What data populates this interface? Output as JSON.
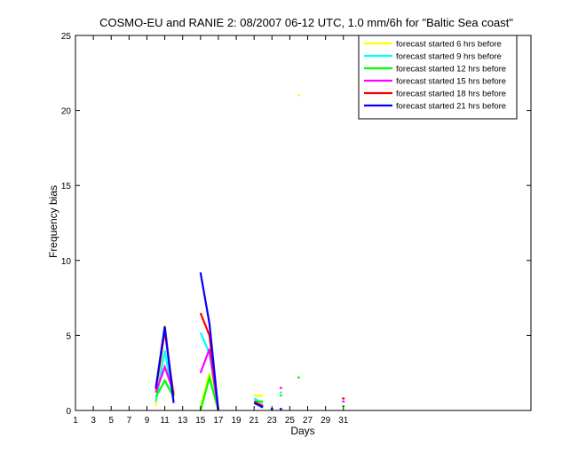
{
  "chart_data": {
    "type": "line",
    "title": "COSMO-EU and RANIE 2: 08/2007 06-12 UTC, 1.0 mm/6h for \"Baltic Sea coast\"",
    "xlabel": "Days",
    "ylabel": "Frequency bias",
    "xlim": [
      1,
      52
    ],
    "ylim": [
      0,
      25
    ],
    "xticks": [
      1,
      3,
      5,
      7,
      9,
      11,
      13,
      15,
      17,
      19,
      21,
      23,
      25,
      27,
      29,
      31
    ],
    "yticks": [
      0,
      5,
      10,
      15,
      20,
      25
    ],
    "grid": false,
    "legend_position": "top-right",
    "series": [
      {
        "name": "forecast started 6 hrs before",
        "color": "#ffff00",
        "segments": [
          [
            [
              10,
              0.3
            ],
            [
              11,
              5.7
            ],
            [
              12,
              0.5
            ]
          ],
          [
            [
              15,
              0.2
            ],
            [
              16,
              2.5
            ],
            [
              17,
              0
            ]
          ],
          [
            [
              21,
              1.0
            ],
            [
              22,
              1.0
            ]
          ],
          [
            [
              26,
              21.0
            ]
          ]
        ]
      },
      {
        "name": "forecast started 9 hrs before",
        "color": "#00ffff",
        "segments": [
          [
            [
              10,
              0.6
            ],
            [
              11,
              4.0
            ],
            [
              12,
              0.6
            ]
          ],
          [
            [
              15,
              5.2
            ],
            [
              16,
              3.8
            ],
            [
              17,
              0
            ]
          ],
          [
            [
              21,
              0.8
            ],
            [
              22,
              0.5
            ]
          ],
          [
            [
              24,
              1.2
            ]
          ]
        ]
      },
      {
        "name": "forecast started 12 hrs before",
        "color": "#00ff00",
        "segments": [
          [
            [
              10,
              0.9
            ],
            [
              11,
              2.0
            ],
            [
              12,
              0.9
            ]
          ],
          [
            [
              15,
              0.0
            ],
            [
              16,
              2.2
            ],
            [
              17,
              0
            ]
          ],
          [
            [
              21,
              0.6
            ],
            [
              22,
              0.6
            ]
          ],
          [
            [
              24,
              1.0
            ]
          ],
          [
            [
              26,
              2.2
            ]
          ],
          [
            [
              31,
              0.3
            ]
          ]
        ]
      },
      {
        "name": "forecast started 15 hrs before",
        "color": "#ff00ff",
        "segments": [
          [
            [
              10,
              1.2
            ],
            [
              11,
              2.9
            ],
            [
              12,
              1.2
            ]
          ],
          [
            [
              15,
              2.5
            ],
            [
              16,
              4.1
            ],
            [
              17,
              0
            ]
          ],
          [
            [
              21,
              0.5
            ],
            [
              22,
              0.3
            ]
          ],
          [
            [
              24,
              1.5
            ]
          ],
          [
            [
              31,
              0.6
            ]
          ]
        ]
      },
      {
        "name": "forecast started 18 hrs before",
        "color": "#ff0000",
        "segments": [
          [
            [
              10,
              1.4
            ],
            [
              11,
              5.3
            ],
            [
              12,
              1.0
            ]
          ],
          [
            [
              15,
              6.5
            ],
            [
              16,
              5.0
            ],
            [
              17,
              0
            ]
          ],
          [
            [
              21,
              0.6
            ],
            [
              22,
              0.3
            ]
          ],
          [
            [
              31,
              0.8
            ]
          ]
        ]
      },
      {
        "name": "forecast started 21 hrs before",
        "color": "#0000ff",
        "segments": [
          [
            [
              10,
              1.5
            ],
            [
              11,
              5.6
            ],
            [
              12,
              0.5
            ]
          ],
          [
            [
              15,
              9.2
            ],
            [
              16,
              5.8
            ],
            [
              17,
              0
            ]
          ],
          [
            [
              21,
              0.5
            ],
            [
              22,
              0.2
            ]
          ],
          [
            [
              23,
              0.1
            ]
          ],
          [
            [
              24,
              0.1
            ]
          ]
        ]
      }
    ]
  }
}
